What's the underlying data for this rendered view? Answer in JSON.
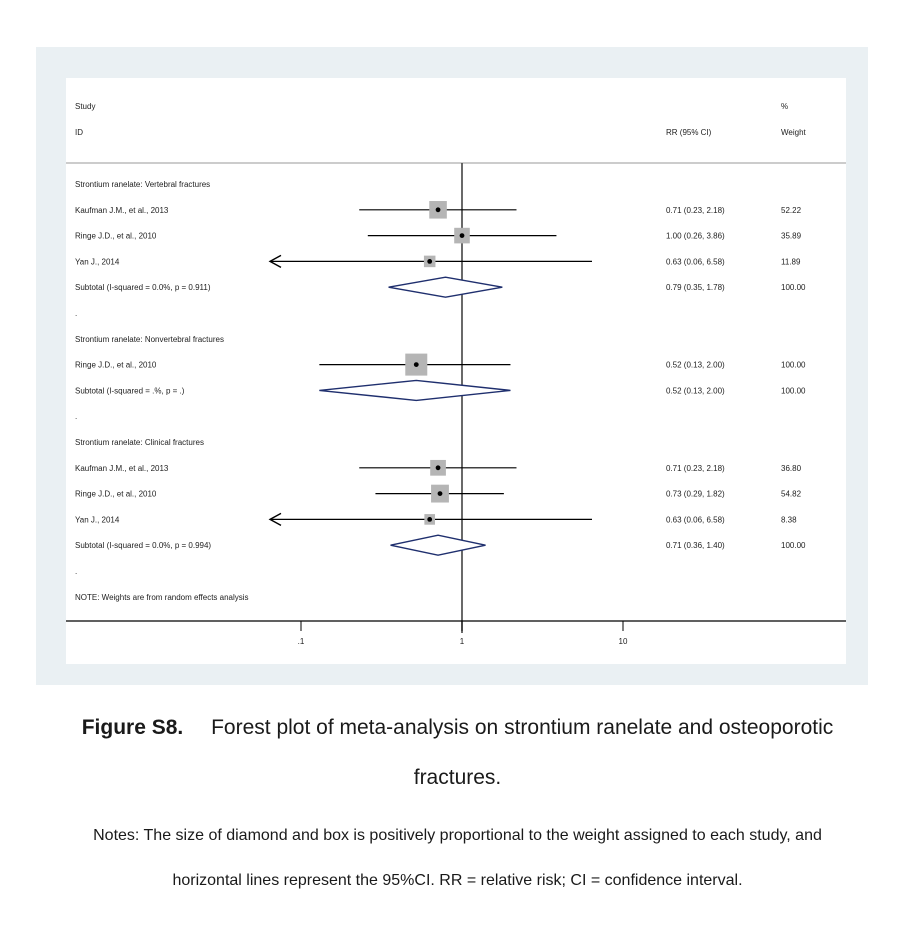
{
  "chart_data": {
    "type": "forest",
    "scale": "log",
    "xticks": [
      {
        "value": 0.1,
        "label": ".1"
      },
      {
        "value": 1,
        "label": "1"
      },
      {
        "value": 10,
        "label": "10"
      }
    ],
    "null_line": 1,
    "header": {
      "col1_line1": "Study",
      "col1_line2": "ID",
      "col2": "RR (95% CI)",
      "col3_line1": "%",
      "col3_line2": "Weight"
    },
    "rows": [
      {
        "kind": "group",
        "label": "Strontium ranelate: Vertebral fractures"
      },
      {
        "kind": "study",
        "label": "Kaufman J.M., et al., 2013",
        "rr": 0.71,
        "lo": 0.23,
        "hi": 2.18,
        "ci_text": "0.71 (0.23, 2.18)",
        "weight": 52.22,
        "weight_text": "52.22"
      },
      {
        "kind": "study",
        "label": "Ringe J.D., et al., 2010",
        "rr": 1.0,
        "lo": 0.26,
        "hi": 3.86,
        "ci_text": "1.00 (0.26, 3.86)",
        "weight": 35.89,
        "weight_text": "35.89"
      },
      {
        "kind": "study",
        "label": "Yan J., 2014",
        "rr": 0.63,
        "lo": 0.06,
        "hi": 6.58,
        "ci_text": "0.63 (0.06, 6.58)",
        "weight": 11.89,
        "weight_text": "11.89",
        "arrow_left": true
      },
      {
        "kind": "subtotal",
        "label": "Subtotal  (I-squared = 0.0%, p = 0.911)",
        "rr": 0.79,
        "lo": 0.35,
        "hi": 1.78,
        "ci_text": "0.79 (0.35, 1.78)",
        "weight_text": "100.00"
      },
      {
        "kind": "spacer",
        "label": "."
      },
      {
        "kind": "group",
        "label": "Strontium ranelate: Nonvertebral fractures"
      },
      {
        "kind": "study",
        "label": "Ringe J.D., et al., 2010",
        "rr": 0.52,
        "lo": 0.13,
        "hi": 2.0,
        "ci_text": "0.52 (0.13, 2.00)",
        "weight": 100.0,
        "weight_text": "100.00"
      },
      {
        "kind": "subtotal",
        "label": "Subtotal  (I-squared = .%, p = .)",
        "rr": 0.52,
        "lo": 0.13,
        "hi": 2.0,
        "ci_text": "0.52 (0.13, 2.00)",
        "weight_text": "100.00"
      },
      {
        "kind": "spacer",
        "label": "."
      },
      {
        "kind": "group",
        "label": "Strontium ranelate: Clinical fractures"
      },
      {
        "kind": "study",
        "label": "Kaufman J.M., et al., 2013",
        "rr": 0.71,
        "lo": 0.23,
        "hi": 2.18,
        "ci_text": "0.71 (0.23, 2.18)",
        "weight": 36.8,
        "weight_text": "36.80"
      },
      {
        "kind": "study",
        "label": "Ringe J.D., et al., 2010",
        "rr": 0.73,
        "lo": 0.29,
        "hi": 1.82,
        "ci_text": "0.73 (0.29, 1.82)",
        "weight": 54.82,
        "weight_text": "54.82"
      },
      {
        "kind": "study",
        "label": "Yan J., 2014",
        "rr": 0.63,
        "lo": 0.06,
        "hi": 6.58,
        "ci_text": "0.63 (0.06, 6.58)",
        "weight": 8.38,
        "weight_text": "8.38",
        "arrow_left": true
      },
      {
        "kind": "subtotal",
        "label": "Subtotal  (I-squared = 0.0%, p = 0.994)",
        "rr": 0.71,
        "lo": 0.36,
        "hi": 1.4,
        "ci_text": "0.71 (0.36, 1.40)",
        "weight_text": "100.00"
      },
      {
        "kind": "spacer",
        "label": "."
      },
      {
        "kind": "note",
        "label": "NOTE: Weights are from random effects analysis"
      }
    ],
    "colors": {
      "box": "#b5b5b5",
      "diamond": "#1f2f6e",
      "line": "#000000",
      "panel": "#eaf0f3"
    }
  },
  "caption": {
    "label": "Figure S8.",
    "text_line1": "Forest plot of meta-analysis on strontium ranelate and osteoporotic",
    "text_line2": "fractures."
  },
  "notes": {
    "line1": "Notes: The size of diamond and box is positively proportional to the weight assigned to each study, and",
    "line2": "horizontal lines represent the 95%CI. RR = relative risk; CI = confidence interval."
  }
}
